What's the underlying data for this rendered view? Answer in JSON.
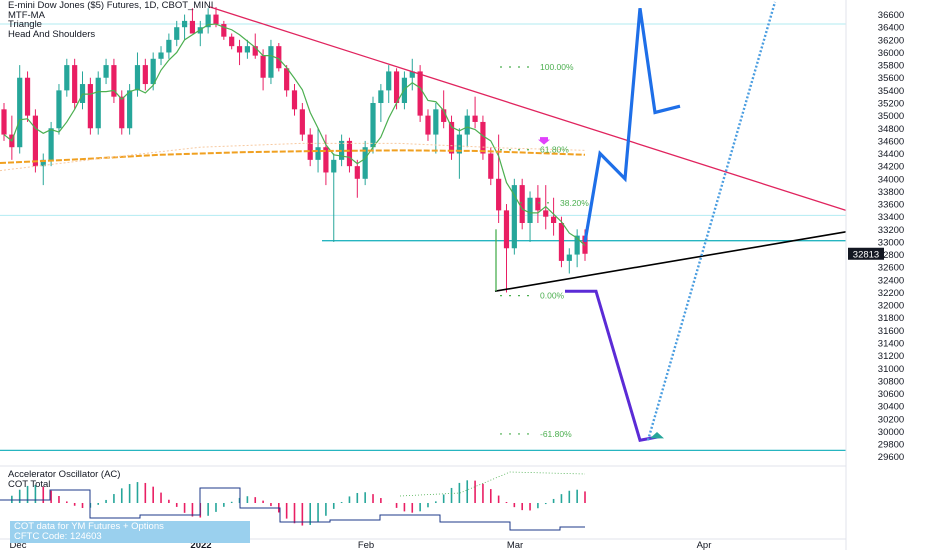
{
  "legend": {
    "title": "E-mini Dow Jones ($5) Futures, 1D, CBOT_MINI",
    "indicators": [
      "MTF-MA",
      "Triangle",
      "Head And Shoulders"
    ]
  },
  "sub_legend": {
    "indicators": [
      "Accelerator Oscillator (AC)",
      "COT Total"
    ]
  },
  "cot_box": {
    "line1": "COT data for YM Futures + Options",
    "line2": "CFTC Code: 124603"
  },
  "colors": {
    "up": "#26a69a",
    "down": "#e91e63",
    "ma_green": "#4caf50",
    "ma_orange": "#f0a020",
    "triangle_upper": "#e0245e",
    "triangle_lower": "#000000",
    "forecast_blue": "#1e6fe8",
    "forecast_purple": "#5b2bd6",
    "dotted_blue": "#4a9de0",
    "cyan_level": "#26b5c0",
    "fib_green": "#4caf50",
    "last_price_bg": "#131722"
  },
  "chart_data": {
    "type": "candlestick",
    "title": "E-mini Dow Jones ($5) Futures, 1D, CBOT_MINI",
    "y_ticks": [
      36600,
      36400,
      36200,
      36000,
      35800,
      35600,
      35400,
      35200,
      35000,
      34800,
      34600,
      34400,
      34200,
      34000,
      33800,
      33600,
      33400,
      33200,
      33000,
      32800,
      32600,
      32400,
      32200,
      32000,
      31800,
      31600,
      31400,
      31200,
      31000,
      30800,
      30600,
      30400,
      30200,
      30000,
      29800,
      29600
    ],
    "ylim": [
      29500,
      36720
    ],
    "x_labels": [
      "Dec",
      "2022",
      "Feb",
      "Mar",
      "Apr"
    ],
    "last_price": "32813",
    "fib_labels": [
      "100.00%",
      "61.80%",
      "38.20%",
      "0.00%",
      "-61.80%"
    ],
    "candles": [
      [
        35100,
        35200,
        34600,
        34700
      ],
      [
        34700,
        35000,
        34300,
        34500
      ],
      [
        34500,
        35800,
        34400,
        35600
      ],
      [
        35600,
        35700,
        34900,
        35000
      ],
      [
        35000,
        35100,
        34100,
        34200
      ],
      [
        34200,
        34400,
        33900,
        34300
      ],
      [
        34300,
        34900,
        34200,
        34800
      ],
      [
        34800,
        35500,
        34700,
        35400
      ],
      [
        35400,
        35900,
        35300,
        35800
      ],
      [
        35800,
        35900,
        35100,
        35200
      ],
      [
        35200,
        35700,
        35100,
        35500
      ],
      [
        35500,
        35600,
        34700,
        34800
      ],
      [
        34800,
        35700,
        34700,
        35600
      ],
      [
        35600,
        35900,
        35500,
        35800
      ],
      [
        35800,
        35900,
        35200,
        35300
      ],
      [
        35300,
        35400,
        34700,
        34800
      ],
      [
        34800,
        35500,
        34700,
        35400
      ],
      [
        35400,
        36000,
        35300,
        35800
      ],
      [
        35800,
        35900,
        35400,
        35500
      ],
      [
        35500,
        36000,
        35400,
        35900
      ],
      [
        35900,
        36100,
        35800,
        36000
      ],
      [
        36000,
        36300,
        35900,
        36200
      ],
      [
        36200,
        36500,
        36100,
        36400
      ],
      [
        36400,
        36600,
        36200,
        36500
      ],
      [
        36500,
        36700,
        36300,
        36300
      ],
      [
        36300,
        36500,
        36100,
        36400
      ],
      [
        36400,
        36700,
        36300,
        36600
      ],
      [
        36600,
        36720,
        36400,
        36450
      ],
      [
        36450,
        36500,
        36200,
        36250
      ],
      [
        36250,
        36300,
        36050,
        36100
      ],
      [
        36100,
        36200,
        35800,
        36000
      ],
      [
        36000,
        36200,
        35900,
        36100
      ],
      [
        36100,
        36300,
        35900,
        35950
      ],
      [
        35950,
        36050,
        35400,
        35600
      ],
      [
        35600,
        36200,
        35500,
        36100
      ],
      [
        36100,
        36150,
        35700,
        35750
      ],
      [
        35750,
        35800,
        35300,
        35400
      ],
      [
        35400,
        35500,
        35000,
        35100
      ],
      [
        35100,
        35200,
        34600,
        34700
      ],
      [
        34700,
        34800,
        34200,
        34300
      ],
      [
        34300,
        34800,
        34100,
        34500
      ],
      [
        34500,
        34700,
        33900,
        34100
      ],
      [
        34100,
        34400,
        33000,
        34300
      ],
      [
        34300,
        34700,
        34200,
        34600
      ],
      [
        34600,
        34650,
        34100,
        34200
      ],
      [
        34200,
        34300,
        33700,
        34000
      ],
      [
        34000,
        34600,
        33900,
        34500
      ],
      [
        34500,
        35300,
        34400,
        35200
      ],
      [
        35200,
        35500,
        34900,
        35400
      ],
      [
        35400,
        35800,
        35200,
        35700
      ],
      [
        35700,
        35750,
        35100,
        35200
      ],
      [
        35200,
        35700,
        35100,
        35600
      ],
      [
        35600,
        35900,
        35400,
        35700
      ],
      [
        35700,
        35800,
        34900,
        35000
      ],
      [
        35000,
        35100,
        34600,
        34700
      ],
      [
        34700,
        35200,
        34400,
        35100
      ],
      [
        35100,
        35400,
        34800,
        34900
      ],
      [
        34900,
        35000,
        34300,
        34400
      ],
      [
        34400,
        34800,
        34000,
        34700
      ],
      [
        34700,
        35100,
        34500,
        35000
      ],
      [
        35000,
        35300,
        34800,
        34900
      ],
      [
        34900,
        35000,
        34300,
        34400
      ],
      [
        34400,
        34500,
        33900,
        34000
      ],
      [
        34000,
        34700,
        33300,
        33500
      ],
      [
        33500,
        33600,
        32200,
        32900
      ],
      [
        32900,
        34000,
        32800,
        33900
      ],
      [
        33900,
        34000,
        33200,
        33300
      ],
      [
        33300,
        33800,
        33000,
        33700
      ],
      [
        33700,
        33900,
        33300,
        33500
      ],
      [
        33500,
        33900,
        33200,
        33400
      ],
      [
        33400,
        33700,
        33100,
        33300
      ],
      [
        33300,
        33400,
        32600,
        32700
      ],
      [
        32700,
        32900,
        32500,
        32800
      ],
      [
        32800,
        33200,
        32600,
        33100
      ],
      [
        33100,
        33200,
        32700,
        32813
      ]
    ]
  }
}
